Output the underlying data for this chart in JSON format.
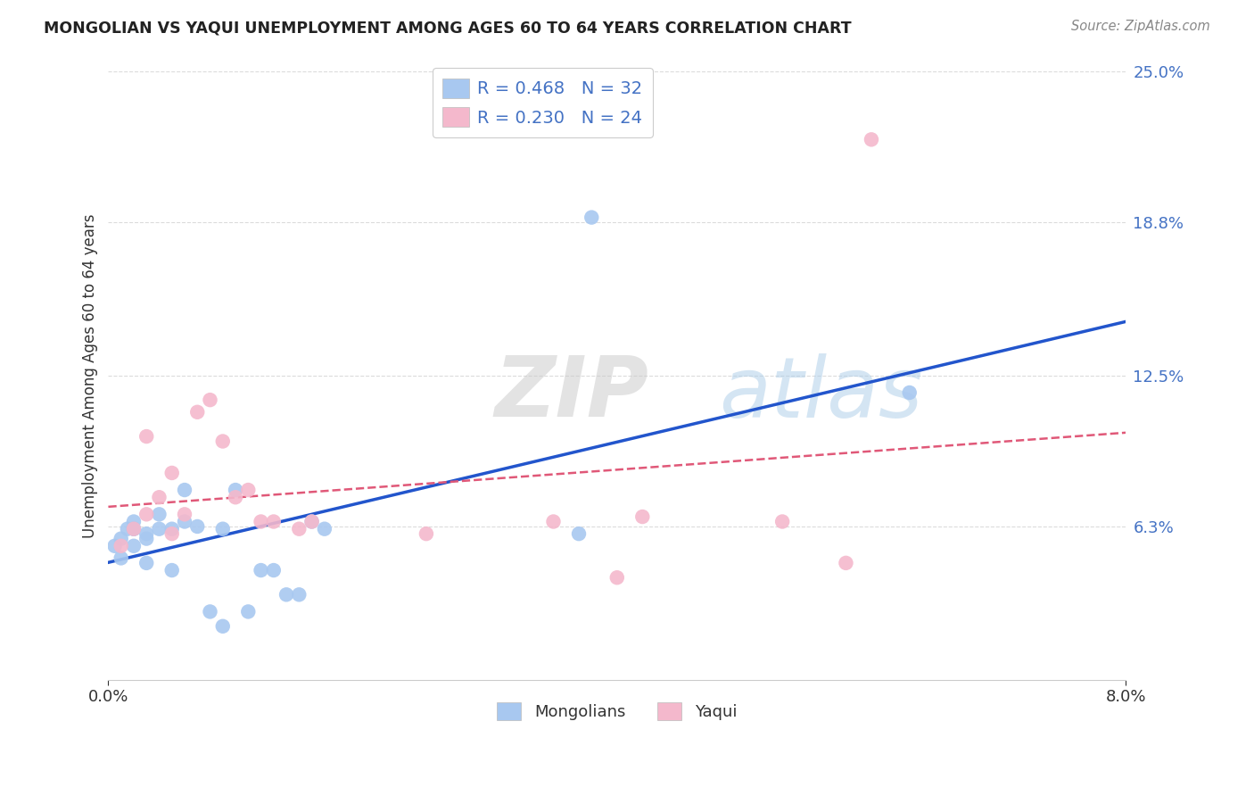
{
  "title": "MONGOLIAN VS YAQUI UNEMPLOYMENT AMONG AGES 60 TO 64 YEARS CORRELATION CHART",
  "source": "Source: ZipAtlas.com",
  "ylabel": "Unemployment Among Ages 60 to 64 years",
  "xlim": [
    0.0,
    0.08
  ],
  "ylim": [
    0.0,
    0.25
  ],
  "ytick_labels": [
    "6.3%",
    "12.5%",
    "18.8%",
    "25.0%"
  ],
  "ytick_values": [
    0.063,
    0.125,
    0.188,
    0.25
  ],
  "mongolian_color": "#a8c8f0",
  "yaqui_color": "#f4b8cc",
  "mongolian_line_color": "#2255cc",
  "yaqui_line_color": "#e05878",
  "legend_R_mongolian": "R = 0.468",
  "legend_N_mongolian": "N = 32",
  "legend_R_yaqui": "R = 0.230",
  "legend_N_yaqui": "N = 24",
  "watermark_zip": "ZIP",
  "watermark_atlas": "atlas",
  "mongolian_x": [
    0.0005,
    0.001,
    0.001,
    0.0015,
    0.002,
    0.002,
    0.002,
    0.002,
    0.003,
    0.003,
    0.003,
    0.004,
    0.004,
    0.005,
    0.005,
    0.006,
    0.006,
    0.007,
    0.008,
    0.009,
    0.009,
    0.01,
    0.011,
    0.012,
    0.013,
    0.014,
    0.015,
    0.016,
    0.017,
    0.037,
    0.038,
    0.063
  ],
  "mongolian_y": [
    0.055,
    0.05,
    0.058,
    0.062,
    0.055,
    0.062,
    0.065,
    0.062,
    0.058,
    0.06,
    0.048,
    0.062,
    0.068,
    0.045,
    0.062,
    0.065,
    0.078,
    0.063,
    0.028,
    0.022,
    0.062,
    0.078,
    0.028,
    0.045,
    0.045,
    0.035,
    0.035,
    0.065,
    0.062,
    0.06,
    0.19,
    0.118
  ],
  "yaqui_x": [
    0.001,
    0.002,
    0.003,
    0.003,
    0.004,
    0.005,
    0.005,
    0.006,
    0.007,
    0.008,
    0.009,
    0.01,
    0.011,
    0.012,
    0.013,
    0.015,
    0.016,
    0.025,
    0.035,
    0.04,
    0.042,
    0.053,
    0.058,
    0.06
  ],
  "yaqui_y": [
    0.055,
    0.062,
    0.068,
    0.1,
    0.075,
    0.085,
    0.06,
    0.068,
    0.11,
    0.115,
    0.098,
    0.075,
    0.078,
    0.065,
    0.065,
    0.062,
    0.065,
    0.06,
    0.065,
    0.042,
    0.067,
    0.065,
    0.048,
    0.222
  ],
  "background_color": "#ffffff",
  "grid_color": "#cccccc"
}
